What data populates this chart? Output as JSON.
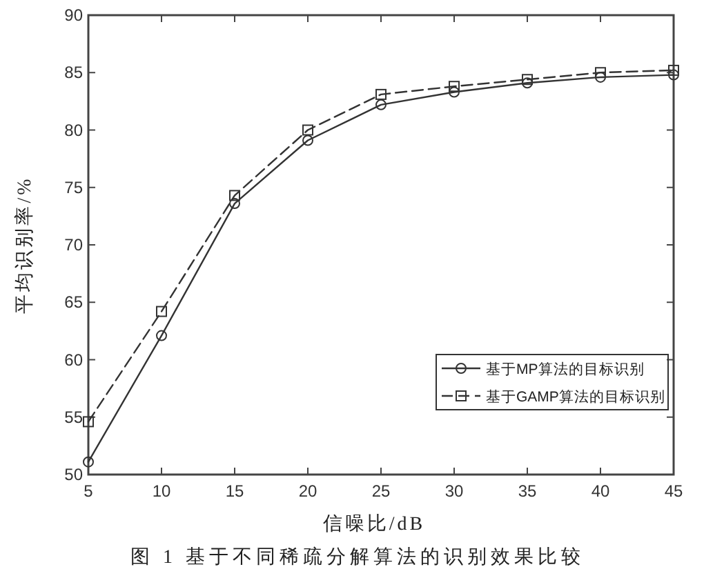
{
  "chart_data": {
    "type": "line",
    "xlabel": "信噪比/dB",
    "ylabel": "平均识别率/%",
    "annotations": [
      "图 1 基于不同稀疏分解算法的识别效果比较"
    ],
    "x": [
      5,
      10,
      15,
      20,
      25,
      30,
      35,
      40,
      45
    ],
    "series": [
      {
        "name": "基于MP算法的目标识别",
        "color": "#333333",
        "marker": "circle",
        "line_style": "solid",
        "values": [
          51.1,
          62.1,
          73.6,
          79.1,
          82.2,
          83.3,
          84.1,
          84.6,
          84.8
        ]
      },
      {
        "name": "基于GAMP算法的目标识别",
        "color": "#333333",
        "marker": "square",
        "line_style": "dashed",
        "values": [
          54.6,
          64.2,
          74.3,
          80.0,
          83.1,
          83.8,
          84.4,
          85.0,
          85.2
        ]
      }
    ],
    "xlim": [
      5,
      45
    ],
    "xticks": [
      5,
      10,
      15,
      20,
      25,
      30,
      35,
      40,
      45
    ],
    "ylim": [
      50,
      90
    ],
    "yticks": [
      50,
      55,
      60,
      65,
      70,
      75,
      80,
      85,
      90
    ],
    "legend": "bottom right"
  }
}
